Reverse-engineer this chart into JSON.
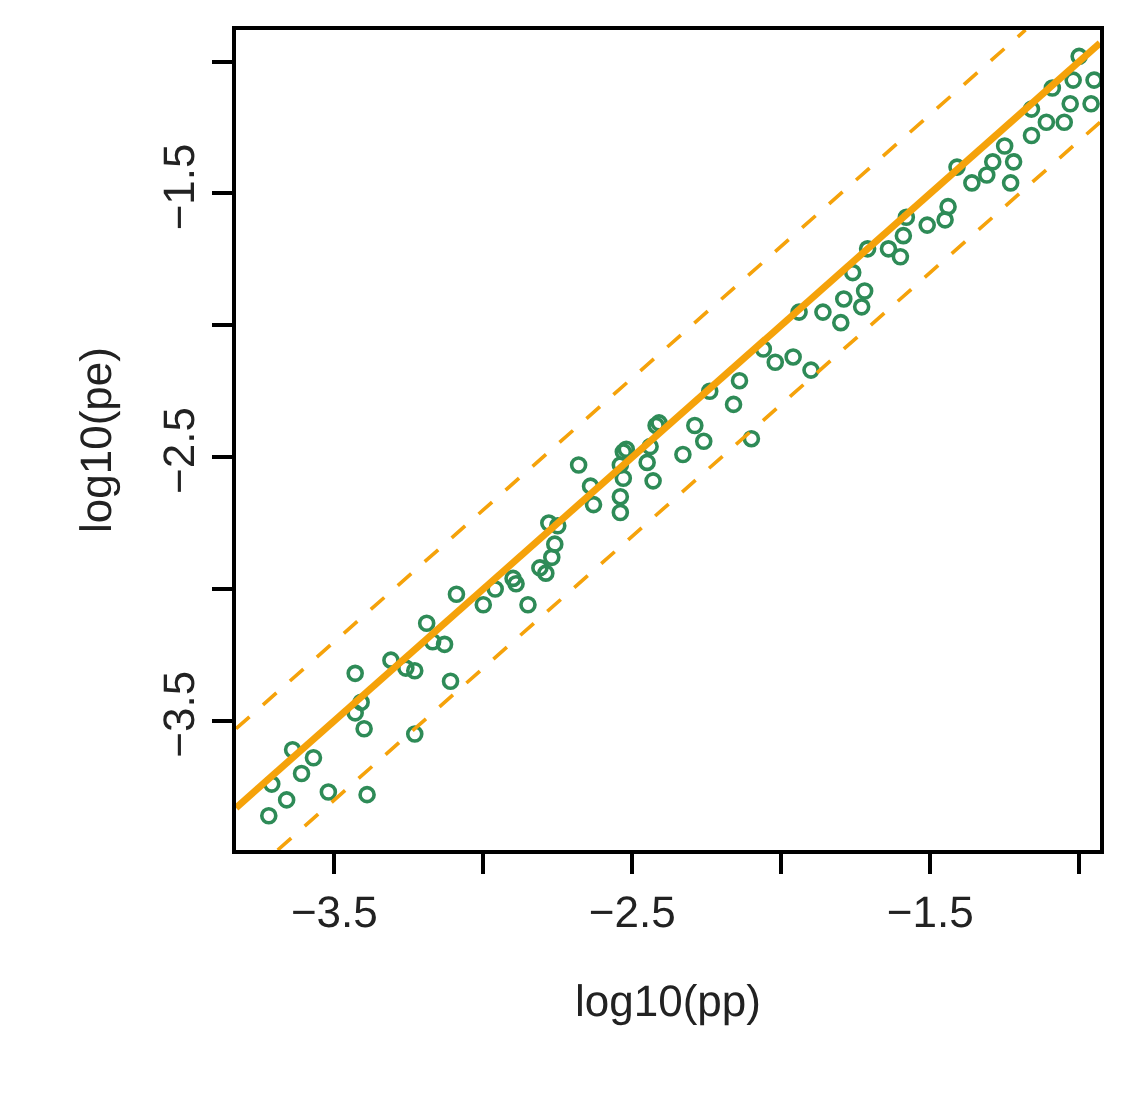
{
  "chart_data": {
    "type": "scatter",
    "xlabel": "log10(pp)",
    "ylabel": "log10(pe)",
    "xlim": [
      -3.83,
      -0.93
    ],
    "ylim": [
      -3.99,
      -0.88
    ],
    "xticks": [
      -3.5,
      {
        "value": -3,
        "label": null
      },
      -2.5,
      {
        "value": -2,
        "label": null
      },
      -1.5,
      {
        "value": -1,
        "label": null
      }
    ],
    "yticks": [
      {
        "value": -1,
        "label": null
      },
      -1.5,
      {
        "value": -2,
        "label": null
      },
      -2.5,
      {
        "value": -3,
        "label": null
      },
      -3.5
    ],
    "series": [
      {
        "marker": "circle",
        "color": "#2e8b57",
        "x": [
          -3.72,
          -3.66,
          -3.71,
          -3.64,
          -3.61,
          -3.57,
          -3.52,
          -3.39,
          -3.43,
          -3.41,
          -3.43,
          -3.4,
          -3.23,
          -3.31,
          -3.26,
          -3.23,
          -3.19,
          -3.17,
          -3.13,
          -3.11,
          -3.09,
          -3.0,
          -2.96,
          -2.9,
          -2.89,
          -2.85,
          -2.81,
          -2.79,
          -2.77,
          -2.76,
          -2.75,
          -2.78,
          -2.68,
          -2.64,
          -2.63,
          -2.54,
          -2.54,
          -2.53,
          -2.54,
          -2.52,
          -2.45,
          -2.43,
          -2.42,
          -2.53,
          -2.44,
          -2.41,
          -2.33,
          -2.29,
          -2.26,
          -2.24,
          -2.16,
          -2.1,
          -2.14,
          -2.06,
          -2.02,
          -1.96,
          -1.9,
          -1.94,
          -1.86,
          -1.8,
          -1.79,
          -1.73,
          -1.72,
          -1.76,
          -1.71,
          -1.64,
          -1.6,
          -1.59,
          -1.58,
          -1.51,
          -1.45,
          -1.44,
          -1.41,
          -1.36,
          -1.31,
          -1.29,
          -1.25,
          -1.23,
          -1.22,
          -1.16,
          -1.16,
          -1.11,
          -1.09,
          -1.05,
          -1.03,
          -1.02,
          -1.0,
          -0.96,
          -0.95
        ],
        "values": [
          -3.86,
          -3.8,
          -3.74,
          -3.61,
          -3.7,
          -3.64,
          -3.77,
          -3.78,
          -3.32,
          -3.43,
          -3.47,
          -3.53,
          -3.55,
          -3.27,
          -3.3,
          -3.31,
          -3.13,
          -3.2,
          -3.21,
          -3.35,
          -3.02,
          -3.06,
          -3.0,
          -2.96,
          -2.98,
          -3.06,
          -2.92,
          -2.94,
          -2.88,
          -2.83,
          -2.76,
          -2.75,
          -2.53,
          -2.61,
          -2.68,
          -2.65,
          -2.71,
          -2.58,
          -2.53,
          -2.47,
          -2.52,
          -2.59,
          -2.38,
          -2.48,
          -2.46,
          -2.37,
          -2.49,
          -2.38,
          -2.44,
          -2.25,
          -2.3,
          -2.43,
          -2.21,
          -2.09,
          -2.14,
          -2.12,
          -2.17,
          -1.95,
          -1.95,
          -1.99,
          -1.9,
          -1.93,
          -1.87,
          -1.8,
          -1.71,
          -1.71,
          -1.74,
          -1.66,
          -1.59,
          -1.62,
          -1.6,
          -1.55,
          -1.4,
          -1.46,
          -1.43,
          -1.38,
          -1.32,
          -1.46,
          -1.38,
          -1.28,
          -1.18,
          -1.23,
          -1.1,
          -1.23,
          -1.16,
          -1.07,
          -0.98,
          -1.16,
          -1.07
        ]
      },
      {
        "type": "line",
        "marker": "none",
        "line_style": "solid",
        "color": "#f5a20a",
        "x": [
          -3.83,
          -0.93
        ],
        "values": [
          -3.83,
          -0.93
        ]
      },
      {
        "type": "line",
        "marker": "none",
        "line_style": "dashed",
        "color": "#f5a20a",
        "x": [
          -3.83,
          -1.18
        ],
        "values": [
          -3.53,
          -0.88
        ]
      },
      {
        "type": "line",
        "marker": "none",
        "line_style": "dashed",
        "color": "#f5a20a",
        "x": [
          -3.69,
          -0.93
        ],
        "values": [
          -3.99,
          -1.23
        ]
      }
    ]
  }
}
